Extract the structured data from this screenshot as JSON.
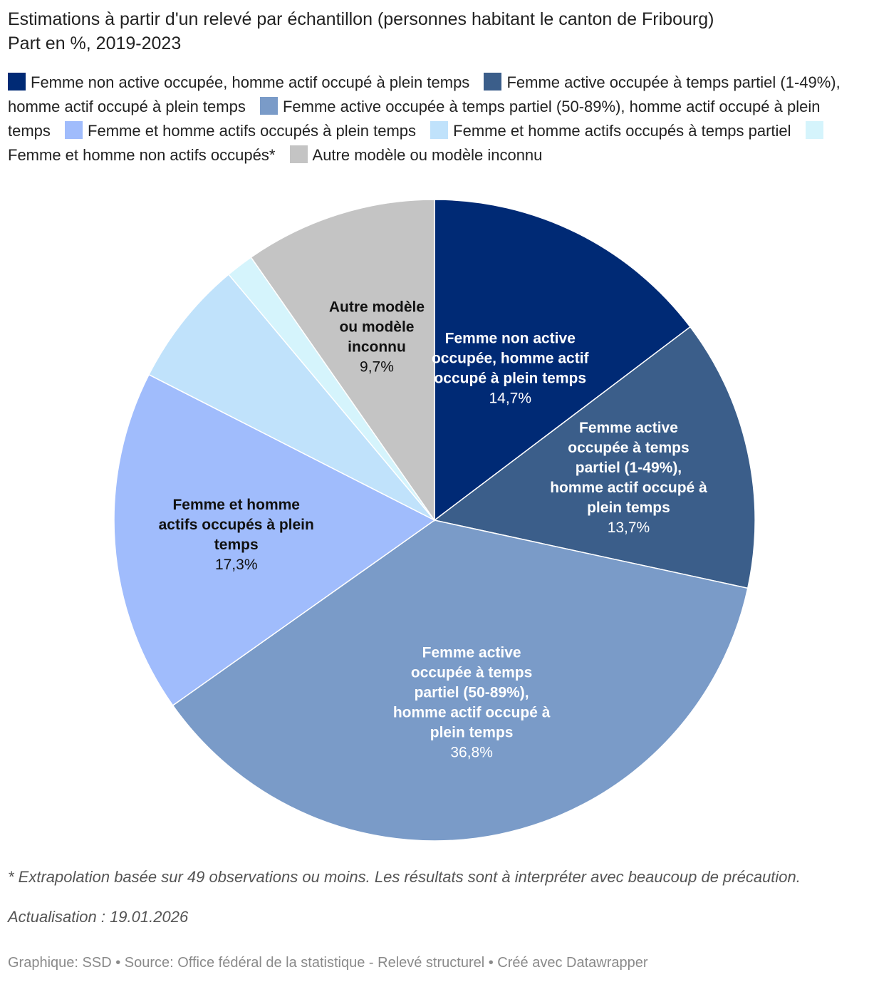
{
  "title": "Estimations à partir d'un relevé par échantillon (personnes habitant le canton de Fribourg)",
  "subtitle": "Part en %, 2019-2023",
  "chart_data": {
    "type": "pie",
    "unit": "%",
    "slices": [
      {
        "name": "Femme non active occupée, homme actif occupé à plein temps",
        "value": 14.7,
        "value_label": "14,7%",
        "color": "#002a75",
        "label_color": "#ffffff",
        "label_lines": [
          "Femme non active",
          "occupée, homme actif",
          "occupé à plein temps"
        ]
      },
      {
        "name": "Femme active occupée à temps partiel (1-49%), homme actif occupé à plein temps",
        "value": 13.7,
        "value_label": "13,7%",
        "color": "#3b5e8a",
        "label_color": "#ffffff",
        "label_lines": [
          "Femme active",
          "occupée à temps",
          "partiel (1-49%),",
          "homme actif occupé à",
          "plein temps"
        ]
      },
      {
        "name": "Femme active occupée à temps partiel (50-89%), homme actif occupé à plein temps",
        "value": 36.8,
        "value_label": "36,8%",
        "color": "#7a9bc8",
        "label_color": "#ffffff",
        "label_lines": [
          "Femme active",
          "occupée à temps",
          "partiel (50-89%),",
          "homme actif occupé à",
          "plein temps"
        ]
      },
      {
        "name": "Femme et homme actifs occupés à plein temps",
        "value": 17.3,
        "value_label": "17,3%",
        "color": "#a0bcfc",
        "label_color": "#111111",
        "label_lines": [
          "Femme et homme",
          "actifs occupés à plein",
          "temps"
        ]
      },
      {
        "name": "Femme et homme actifs occupés à temps partiel",
        "value": 6.4,
        "value_label": "",
        "color": "#c0e2fb",
        "label_color": "#111111",
        "label_lines": []
      },
      {
        "name": "Femme et homme non actifs occupés*",
        "value": 1.4,
        "value_label": "",
        "color": "#d5f4fc",
        "label_color": "#111111",
        "label_lines": []
      },
      {
        "name": "Autre modèle ou modèle inconnu",
        "value": 9.7,
        "value_label": "9,7%",
        "color": "#c4c4c4",
        "label_color": "#111111",
        "label_lines": [
          "Autre modèle",
          "ou modèle",
          "inconnu"
        ]
      }
    ]
  },
  "legend": [
    {
      "label": "Femme non active occupée, homme actif occupé à plein temps",
      "color": "#002a75"
    },
    {
      "label": "Femme active occupée à temps partiel (1-49%), homme actif occupé à plein temps",
      "color": "#3b5e8a"
    },
    {
      "label": "Femme active occupée à temps partiel (50-89%), homme actif occupé à plein temps",
      "color": "#7a9bc8"
    },
    {
      "label": "Femme et homme actifs occupés à plein temps",
      "color": "#a0bcfc"
    },
    {
      "label": "Femme et homme actifs occupés à temps partiel",
      "color": "#c0e2fb"
    },
    {
      "label": "Femme et homme non actifs occupés*",
      "color": "#d5f4fc"
    },
    {
      "label": "Autre modèle ou modèle inconnu",
      "color": "#c4c4c4"
    }
  ],
  "note": "* Extrapolation basée sur 49 observations ou moins. Les résultats sont à interpréter avec beaucoup de précaution.",
  "update": "Actualisation : 19.01.2026",
  "footer": "Graphique: SSD • Source: Office fédéral de la statistique - Relevé structurel  • Créé avec Datawrapper"
}
